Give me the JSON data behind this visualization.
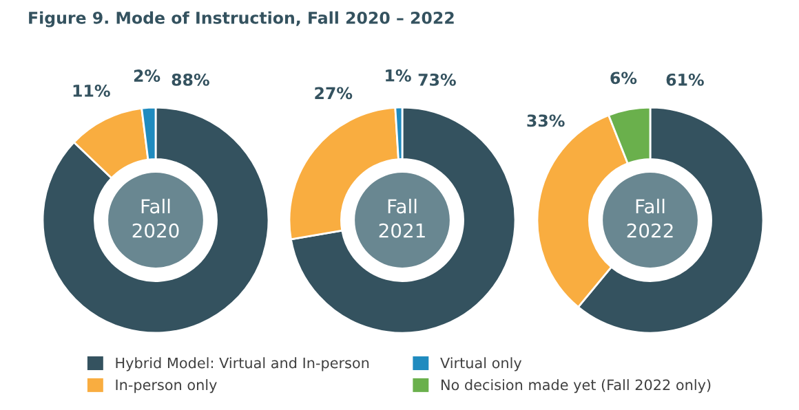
{
  "chart_data": [
    {
      "type": "donut",
      "title": "Figure 9. Mode of Instruction, Fall 2020 – 2022",
      "annotations": [
        "Fall\n2020"
      ],
      "categories": [
        "Hybrid Model: Virtual and In-person",
        "In-person only",
        "Virtual only"
      ],
      "values": [
        88,
        11,
        2
      ],
      "colors": [
        "#34525f",
        "#f9ad40",
        "#1f8bbf"
      ],
      "value_labels": [
        "88%",
        "11%",
        "2%"
      ],
      "legend": "bottom"
    },
    {
      "type": "donut",
      "annotations": [
        "Fall\n2021"
      ],
      "categories": [
        null,
        null,
        null
      ],
      "values": [
        73,
        27,
        1
      ],
      "colors": [
        "#34525f",
        "#f9ad40",
        "#1f8bbf"
      ],
      "value_labels": [
        "73%",
        "27%",
        "1%"
      ]
    },
    {
      "type": "donut",
      "annotations": [
        "Fall\n2022"
      ],
      "categories": [
        null,
        null,
        "No decision made yet (Fall 2022 only)"
      ],
      "values": [
        61,
        33,
        6
      ],
      "colors": [
        "#34525f",
        "#f9ad40",
        "#6ab04c"
      ],
      "value_labels": [
        "61%",
        "33%",
        "6%"
      ],
      "legend": "bottom"
    }
  ]
}
